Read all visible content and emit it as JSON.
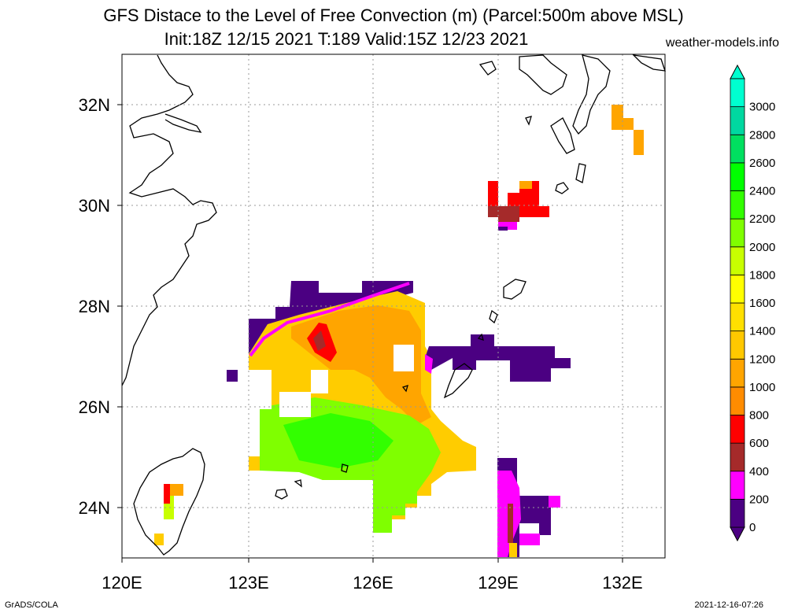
{
  "title": {
    "line1": "GFS Distace to the Level of Free Convection (m) (Parcel:500m above MSL)",
    "line2": "Init:18Z 12/15 2021 T:189 Valid:15Z 12/23 2021",
    "site": "weather-models.info"
  },
  "map": {
    "lon_range": [
      120,
      133
    ],
    "lat_range": [
      23,
      33
    ],
    "x_ticks": [
      "120E",
      "123E",
      "126E",
      "129E",
      "132E"
    ],
    "y_ticks": [
      "24N",
      "26N",
      "28N",
      "30N",
      "32N"
    ]
  },
  "colorbar": {
    "levels": [
      "0",
      "200",
      "400",
      "600",
      "800",
      "1000",
      "1200",
      "1400",
      "1600",
      "1800",
      "2000",
      "2200",
      "2400",
      "2600",
      "2800",
      "3000"
    ],
    "colors": [
      "#4b0082",
      "#ff00ff",
      "#a52a2a",
      "#ff0000",
      "#ff8c00",
      "#ffa500",
      "#ffc800",
      "#ffe000",
      "#ffff00",
      "#c8ff00",
      "#7fff00",
      "#32ff00",
      "#00ff00",
      "#00e060",
      "#00d8a0",
      "#00ffd0"
    ]
  },
  "footer": {
    "left": "GrADS/COLA",
    "right": "2021-12-16-07:26"
  }
}
